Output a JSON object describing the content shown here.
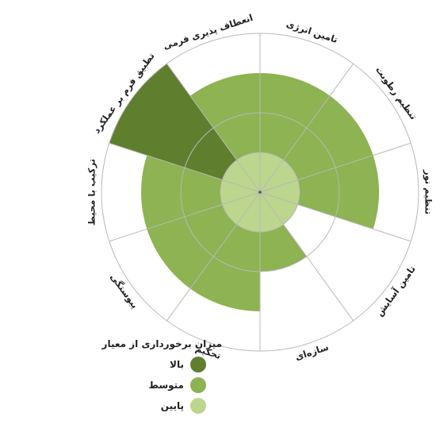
{
  "chart_data": {
    "type": "polar-area",
    "max_level": 4,
    "title": "",
    "categories": [
      "تامین انرژی",
      "تنظیم رطوبت",
      "تنظیم نور",
      "تامین آسایش",
      "سازه‌ای",
      "تحکیم",
      "پیوستگی",
      "ترکیب با محیط",
      "تطبیق فرم بر عملکرد",
      "انعطاف پذیری فرمی"
    ],
    "values": [
      3,
      3,
      3,
      1,
      2,
      3,
      3,
      3,
      4,
      3
    ],
    "value_levels": [
      "متوسط",
      "متوسط",
      "متوسط",
      "پایین",
      "متوسط",
      "متوسط",
      "متوسط",
      "متوسط",
      "بالا",
      "متوسط"
    ],
    "legend_title": "میزان برخورداری از معیار",
    "legend": [
      {
        "label": "بالا",
        "color": "#5f7e2e"
      },
      {
        "label": "متوسط",
        "color": "#8db352"
      },
      {
        "label": "پایین",
        "color": "#bcd68e"
      }
    ],
    "inner_circle_color": "#bcd68e",
    "grid_color": "#b8b8b8"
  }
}
